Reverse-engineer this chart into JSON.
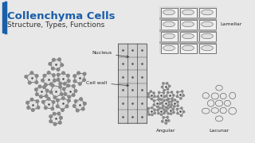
{
  "title": "Collenchyma Cells",
  "subtitle": "Structure, Types, Functions",
  "title_color": "#1a5fa8",
  "subtitle_color": "#333333",
  "accent_bar_color": "#1a5fa8",
  "background_color": "#e8e8e8",
  "label_nucleus": "Nucleus",
  "label_cellwall": "Cell wall",
  "label_lamellar": "Lamellar",
  "label_angular": "Angular",
  "label_lacunar": "Lacunar",
  "title_fontsize": 9.5,
  "subtitle_fontsize": 6.5,
  "label_fontsize": 4.5,
  "cell_color": "#555555",
  "cell_fill": "#cccccc",
  "bg_white": "#f5f5f5"
}
